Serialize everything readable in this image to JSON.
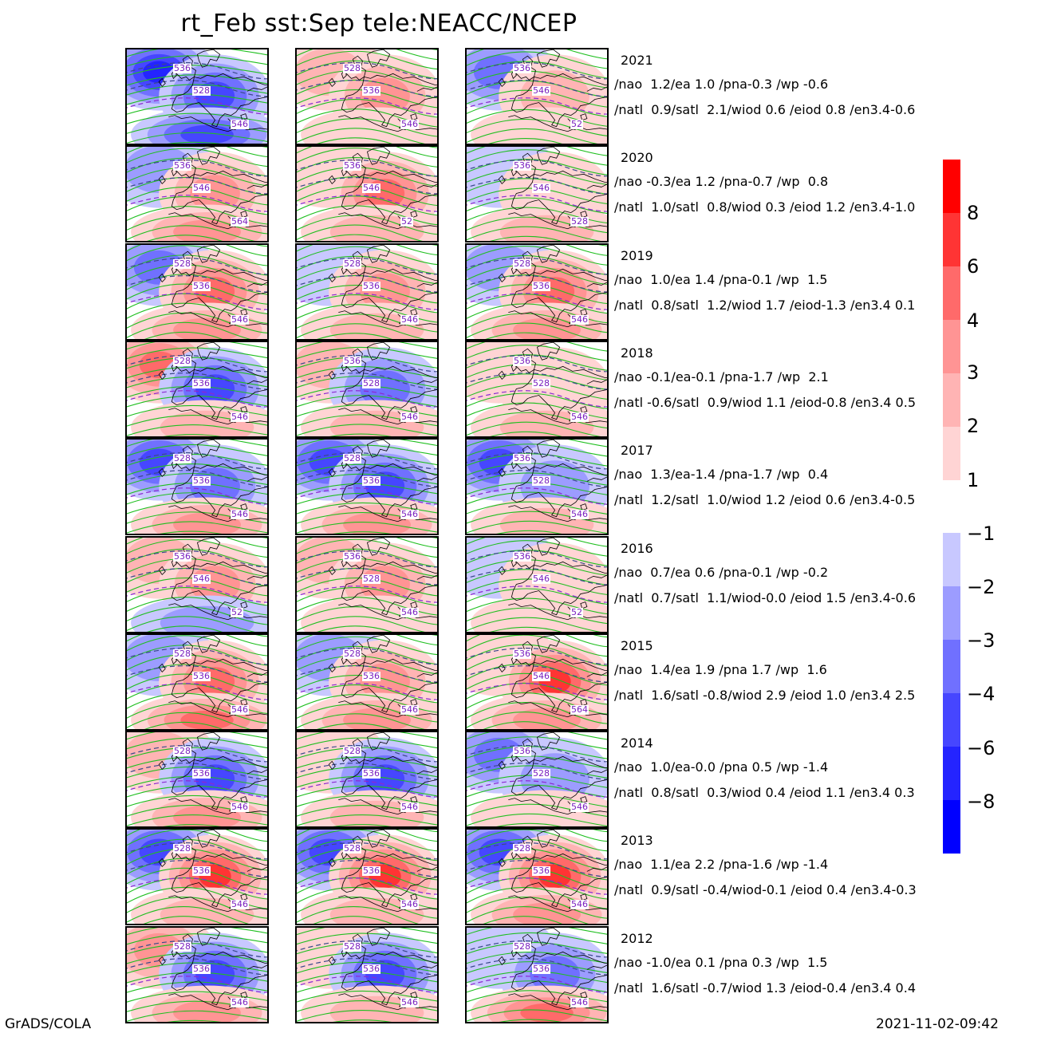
{
  "title": "rt_Feb  sst:Sep  tele:NEACC/NCEP",
  "footer": {
    "left": "GrADS/COLA",
    "right": "2021-11-02-09:42"
  },
  "colors": {
    "positive": [
      "#ffd4d4",
      "#ffb4b4",
      "#ff9494",
      "#ff6a6a",
      "#ff3434",
      "#ff0000"
    ],
    "negative": [
      "#c8c8ff",
      "#9c9cff",
      "#7070ff",
      "#4646ff",
      "#2424ff",
      "#0000ff"
    ],
    "contour_green": "#1fbf1f",
    "contour_dashed_dark": "#3a4a8a",
    "contour_dashed_purple": "#8a2ad0",
    "coast": "#000000",
    "label": "#7a1fbf"
  },
  "colorbar": {
    "positive_ticks": [
      "8",
      "6",
      "4",
      "3",
      "2",
      "1"
    ],
    "negative_ticks": [
      "-1",
      "-2",
      "-3",
      "-4",
      "-6",
      "-8"
    ]
  },
  "rows": [
    {
      "year": "2021",
      "line1": "/nao  1.2/ea 1.0 /pna-0.3 /wp -0.6",
      "line2": "/natl  0.9/satl  2.1/wiod 0.6 /eiod 0.8 /en3.4-0.6",
      "panels": [
        {
          "a": -6,
          "b": -5,
          "c": -4,
          "labels": [
            "536",
            "528",
            "546"
          ]
        },
        {
          "a": 2,
          "b": 3,
          "c": 1,
          "labels": [
            "528",
            "536",
            "546"
          ]
        },
        {
          "a": -3,
          "b": 2,
          "c": 1,
          "labels": [
            "536",
            "546",
            "52"
          ]
        }
      ]
    },
    {
      "year": "2020",
      "line1": "/nao -0.3/ea 1.2 /pna-0.7 /wp  0.8",
      "line2": "/natl  1.0/satl  0.8/wiod 0.3 /eiod 1.2 /en3.4-1.0",
      "panels": [
        {
          "a": -2,
          "b": 3,
          "c": 3,
          "labels": [
            "536",
            "546",
            "564"
          ]
        },
        {
          "a": 1,
          "b": 4,
          "c": 2,
          "labels": [
            "536",
            "546",
            "52"
          ]
        },
        {
          "a": -1,
          "b": 1,
          "c": 2,
          "labels": [
            "536",
            "546",
            "528"
          ]
        }
      ]
    },
    {
      "year": "2019",
      "line1": "/nao  1.0/ea 1.4 /pna-0.1 /wp  1.5",
      "line2": "/natl  0.8/satl  1.2/wiod 1.7 /eiod-1.3 /en3.4 0.1",
      "panels": [
        {
          "a": -3,
          "b": 5,
          "c": 3,
          "labels": [
            "528",
            "536",
            "546"
          ]
        },
        {
          "a": -1,
          "b": 3,
          "c": 2,
          "labels": [
            "528",
            "536",
            "546"
          ]
        },
        {
          "a": -2,
          "b": 4,
          "c": 3,
          "labels": [
            "528",
            "536",
            "546"
          ]
        }
      ]
    },
    {
      "year": "2018",
      "line1": "/nao -0.1/ea-0.1 /pna-1.7 /wp  2.1",
      "line2": "/natl -0.6/satl  0.9/wiod 1.1 /eiod-0.8 /en3.4 0.5",
      "panels": [
        {
          "a": 5,
          "b": -4,
          "c": 2,
          "labels": [
            "528",
            "536",
            "546"
          ]
        },
        {
          "a": 2,
          "b": -3,
          "c": 2,
          "labels": [
            "536",
            "528",
            "546"
          ]
        },
        {
          "a": 1,
          "b": 1,
          "c": 2,
          "labels": [
            "536",
            "528",
            "546"
          ]
        }
      ]
    },
    {
      "year": "2017",
      "line1": "/nao  1.3/ea-1.4 /pna-1.7 /wp  0.4",
      "line2": "/natl  1.2/satl  1.0/wiod 1.2 /eiod 0.6 /en3.4-0.5",
      "panels": [
        {
          "a": -5,
          "b": -3,
          "c": 3,
          "labels": [
            "528",
            "536",
            "546"
          ]
        },
        {
          "a": -5,
          "b": -4,
          "c": 3,
          "labels": [
            "528",
            "536",
            "546"
          ]
        },
        {
          "a": -5,
          "b": -2,
          "c": 2,
          "labels": [
            "536",
            "528",
            "546"
          ]
        }
      ]
    },
    {
      "year": "2016",
      "line1": "/nao  0.7/ea 0.6 /pna-0.1 /wp -0.2",
      "line2": "/natl  0.7/satl  1.1/wiod-0.0 /eiod 1.5 /en3.4-0.6",
      "panels": [
        {
          "a": 2,
          "b": 3,
          "c": -2,
          "labels": [
            "536",
            "546",
            "52"
          ]
        },
        {
          "a": 2,
          "b": 3,
          "c": 1,
          "labels": [
            "536",
            "528",
            "546"
          ]
        },
        {
          "a": -1,
          "b": 1,
          "c": 1,
          "labels": [
            "536",
            "546",
            "52"
          ]
        }
      ]
    },
    {
      "year": "2015",
      "line1": "/nao  1.4/ea 1.9 /pna 1.7 /wp  1.6",
      "line2": "/natl  1.6/satl -0.8/wiod 2.9 /eiod 1.0 /en3.4 2.5",
      "panels": [
        {
          "a": -2,
          "b": 5,
          "c": 4,
          "labels": [
            "528",
            "536",
            "546"
          ]
        },
        {
          "a": -2,
          "b": 3,
          "c": 3,
          "labels": [
            "528",
            "536",
            "546"
          ]
        },
        {
          "a": 1,
          "b": 6,
          "c": 3,
          "labels": [
            "536",
            "546",
            "564"
          ]
        }
      ]
    },
    {
      "year": "2014",
      "line1": "/nao  1.0/ea-0.0 /pna 0.5 /wp -1.4",
      "line2": "/natl  0.8/satl  0.3/wiod 0.4 /eiod 1.1 /en3.4 0.3",
      "panels": [
        {
          "a": 2,
          "b": -4,
          "c": 3,
          "labels": [
            "528",
            "536",
            "546"
          ]
        },
        {
          "a": 1,
          "b": -4,
          "c": 2,
          "labels": [
            "528",
            "536",
            "546"
          ]
        },
        {
          "a": -3,
          "b": -2,
          "c": 1,
          "labels": [
            "536",
            "528",
            "546"
          ]
        }
      ]
    },
    {
      "year": "2013",
      "line1": "/nao  1.1/ea 2.2 /pna-1.6 /wp -1.4",
      "line2": "/natl  0.9/satl -0.4/wiod-0.1 /eiod 0.4 /en3.4-0.3",
      "panels": [
        {
          "a": -5,
          "b": 6,
          "c": 2,
          "labels": [
            "528",
            "536",
            "546"
          ]
        },
        {
          "a": -4,
          "b": 6,
          "c": 2,
          "labels": [
            "528",
            "536",
            "546"
          ]
        },
        {
          "a": -5,
          "b": 6,
          "c": 3,
          "labels": [
            "528",
            "536",
            "546"
          ]
        }
      ]
    },
    {
      "year": "2012",
      "line1": "/nao -1.0/ea 0.1 /pna 0.3 /wp  1.5",
      "line2": "/natl  1.6/satl -0.7/wiod 1.3 /eiod-0.4 /en3.4 0.4",
      "panels": [
        {
          "a": 3,
          "b": -5,
          "c": 3,
          "labels": [
            "528",
            "536",
            "546"
          ]
        },
        {
          "a": 1,
          "b": -4,
          "c": 2,
          "labels": [
            "528",
            "536",
            "546"
          ]
        },
        {
          "a": -1,
          "b": -3,
          "c": 4,
          "labels": [
            "528",
            "536",
            "546"
          ]
        }
      ]
    }
  ]
}
